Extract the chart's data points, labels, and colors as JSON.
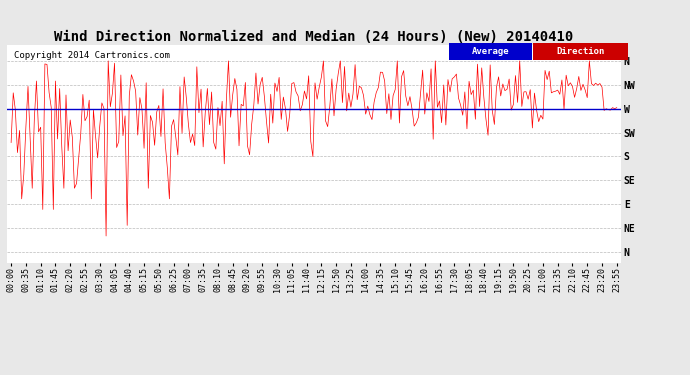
{
  "title": "Wind Direction Normalized and Median (24 Hours) (New) 20140410",
  "copyright": "Copyright 2014 Cartronics.com",
  "legend_avg": "Average",
  "legend_dir": "Direction",
  "ytick_labels": [
    "N",
    "NW",
    "W",
    "SW",
    "S",
    "SE",
    "E",
    "NE",
    "N"
  ],
  "ytick_values": [
    360,
    315,
    270,
    225,
    180,
    135,
    90,
    45,
    0
  ],
  "blue_line_value": 270,
  "background_color": "#e8e8e8",
  "plot_bg_color": "#ffffff",
  "red_color": "#ff0000",
  "blue_color": "#0000cc",
  "grid_color": "#aaaaaa",
  "title_fontsize": 10,
  "copyright_fontsize": 6.5,
  "tick_fontsize": 6,
  "seed": 123,
  "n_points": 288,
  "minutes_per_point": 5,
  "label_every_n": 7
}
